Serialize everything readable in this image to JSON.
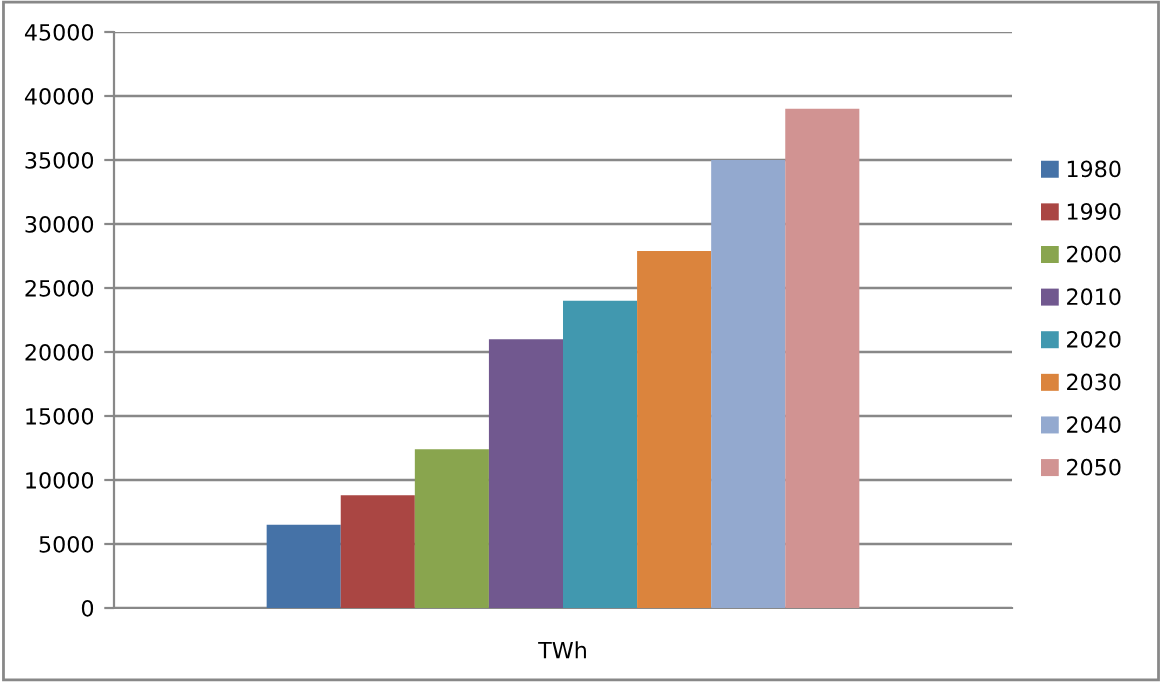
{
  "chart_data": {
    "type": "bar",
    "categories": [
      "TWh"
    ],
    "series": [
      {
        "name": "1980",
        "color": "#4572a7",
        "values": [
          6500
        ]
      },
      {
        "name": "1990",
        "color": "#aa4643",
        "values": [
          8800
        ]
      },
      {
        "name": "2000",
        "color": "#89a54e",
        "values": [
          12400
        ]
      },
      {
        "name": "2010",
        "color": "#71588f",
        "values": [
          21000
        ]
      },
      {
        "name": "2020",
        "color": "#4198af",
        "values": [
          24000
        ]
      },
      {
        "name": "2030",
        "color": "#db843d",
        "values": [
          27900
        ]
      },
      {
        "name": "2040",
        "color": "#93a9cf",
        "values": [
          35000
        ]
      },
      {
        "name": "2050",
        "color": "#d19392",
        "values": [
          39000
        ]
      }
    ],
    "ylim": [
      0,
      45000
    ],
    "yticks": [
      0,
      5000,
      10000,
      15000,
      20000,
      25000,
      30000,
      35000,
      40000,
      45000
    ],
    "grid": "y",
    "legend": "right"
  }
}
